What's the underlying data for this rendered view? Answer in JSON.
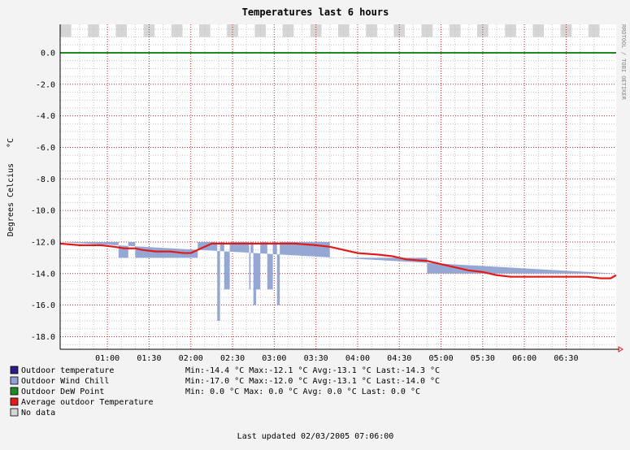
{
  "chart_data": {
    "type": "area",
    "title": "Temperatures last 6 hours",
    "ylabel": "Degrees Celcius",
    "yunit": "°C",
    "watermark": "RRDTOOL / TOBI OETIKER",
    "footer": "Last updated 02/03/2005 07:06:00",
    "ylim": [
      -18.8,
      1.8
    ],
    "xlim": [
      "00:26",
      "07:06"
    ],
    "yticks": [
      "0.0",
      "-2.0",
      "-4.0",
      "-6.0",
      "-8.0",
      "-10.0",
      "-12.0",
      "-14.0",
      "-16.0",
      "-18.0"
    ],
    "xticks": [
      "01:00",
      "01:30",
      "02:00",
      "02:30",
      "03:00",
      "03:30",
      "04:00",
      "04:30",
      "05:00",
      "05:30",
      "06:00",
      "06:30"
    ],
    "grid": true,
    "colors": {
      "outdoor_temperature": "#2e1a8e",
      "wind_chill": "#8fa3d2",
      "dew_point": "#1f8a1f",
      "average": "#e11b1b",
      "no_data": "#d6d6d6"
    },
    "series": [
      {
        "name": "Outdoor Wind Chill",
        "points": [
          [
            "00:26",
            -12.0
          ],
          [
            "00:48",
            -12.0
          ],
          [
            "00:48",
            -12.0
          ],
          [
            "01:08",
            -12.0
          ],
          [
            "01:08",
            -13.0
          ],
          [
            "01:15",
            -13.0
          ],
          [
            "01:15",
            -12.0
          ],
          [
            "01:20",
            -12.0
          ],
          [
            "01:20",
            -13.0
          ],
          [
            "01:31",
            -13.0
          ],
          [
            "01:31",
            -13.0
          ],
          [
            "02:05",
            -13.0
          ],
          [
            "02:05",
            -12.0
          ],
          [
            "02:19",
            -12.0
          ],
          [
            "02:19",
            -17.0
          ],
          [
            "02:21",
            -17.0
          ],
          [
            "02:21",
            -12.0
          ],
          [
            "02:24",
            -12.0
          ],
          [
            "02:24",
            -15.0
          ],
          [
            "02:28",
            -15.0
          ],
          [
            "02:28",
            -12.0
          ],
          [
            "02:42",
            -12.0
          ],
          [
            "02:42",
            -15.0
          ],
          [
            "02:43",
            -15.0
          ],
          [
            "02:43",
            -12.0
          ],
          [
            "02:45",
            -12.0
          ],
          [
            "02:45",
            -16.0
          ],
          [
            "02:47",
            -16.0
          ],
          [
            "02:47",
            -15.0
          ],
          [
            "02:50",
            -15.0
          ],
          [
            "02:50",
            -12.0
          ],
          [
            "02:55",
            -12.0
          ],
          [
            "02:55",
            -15.0
          ],
          [
            "02:59",
            -15.0
          ],
          [
            "02:59",
            -12.0
          ],
          [
            "03:02",
            -12.0
          ],
          [
            "03:02",
            -16.0
          ],
          [
            "03:04",
            -16.0
          ],
          [
            "03:04",
            -12.0
          ],
          [
            "03:40",
            -12.0
          ],
          [
            "03:40",
            -13.0
          ],
          [
            "04:18",
            -13.0
          ],
          [
            "04:18",
            -13.0
          ],
          [
            "04:30",
            -13.0
          ],
          [
            "04:30",
            -13.0
          ],
          [
            "04:50",
            -13.0
          ],
          [
            "04:50",
            -14.0
          ],
          [
            "05:20",
            -14.0
          ],
          [
            "05:20",
            -14.0
          ],
          [
            "07:06",
            -14.0
          ]
        ]
      },
      {
        "name": "Average outdoor Temperature",
        "points": [
          [
            "00:26",
            -12.1
          ],
          [
            "00:40",
            -12.2
          ],
          [
            "00:55",
            -12.2
          ],
          [
            "01:05",
            -12.3
          ],
          [
            "01:12",
            -12.4
          ],
          [
            "01:20",
            -12.4
          ],
          [
            "01:25",
            -12.5
          ],
          [
            "01:35",
            -12.6
          ],
          [
            "01:45",
            -12.6
          ],
          [
            "01:55",
            -12.7
          ],
          [
            "02:00",
            -12.7
          ],
          [
            "02:05",
            -12.5
          ],
          [
            "02:10",
            -12.3
          ],
          [
            "02:15",
            -12.1
          ],
          [
            "02:30",
            -12.1
          ],
          [
            "03:00",
            -12.1
          ],
          [
            "03:15",
            -12.1
          ],
          [
            "03:30",
            -12.2
          ],
          [
            "03:40",
            -12.3
          ],
          [
            "03:50",
            -12.5
          ],
          [
            "04:00",
            -12.7
          ],
          [
            "04:15",
            -12.8
          ],
          [
            "04:25",
            -12.9
          ],
          [
            "04:35",
            -13.1
          ],
          [
            "04:50",
            -13.2
          ],
          [
            "05:00",
            -13.4
          ],
          [
            "05:10",
            -13.6
          ],
          [
            "05:20",
            -13.8
          ],
          [
            "05:30",
            -13.9
          ],
          [
            "05:40",
            -14.1
          ],
          [
            "05:50",
            -14.2
          ],
          [
            "06:10",
            -14.2
          ],
          [
            "06:30",
            -14.2
          ],
          [
            "06:45",
            -14.2
          ],
          [
            "06:55",
            -14.3
          ],
          [
            "07:02",
            -14.3
          ],
          [
            "07:06",
            -14.1
          ]
        ]
      },
      {
        "name": "Outdoor DeW Point",
        "points": [
          [
            "00:26",
            0.0
          ],
          [
            "07:06",
            0.0
          ]
        ]
      }
    ],
    "no_data_band": [
      1.0,
      1.8
    ],
    "legend": [
      {
        "key": "outdoor_temperature",
        "label": "Outdoor temperature",
        "stats": "Min:-14.4 °C  Max:-12.1 °C  Avg:-13.1 °C  Last:-14.3 °C"
      },
      {
        "key": "wind_chill",
        "label": "Outdoor Wind Chill",
        "stats": "Min:-17.0 °C  Max:-12.0 °C  Avg:-13.1 °C  Last:-14.0 °C"
      },
      {
        "key": "dew_point",
        "label": "Outdoor DeW Point",
        "stats": "Min:  0.0 °C  Max:  0.0 °C  Avg:  0.0 °C  Last:  0.0 °C"
      },
      {
        "key": "average",
        "label": "Average outdoor Temperature",
        "stats": ""
      },
      {
        "key": "no_data",
        "label": "No data",
        "stats": ""
      }
    ]
  }
}
